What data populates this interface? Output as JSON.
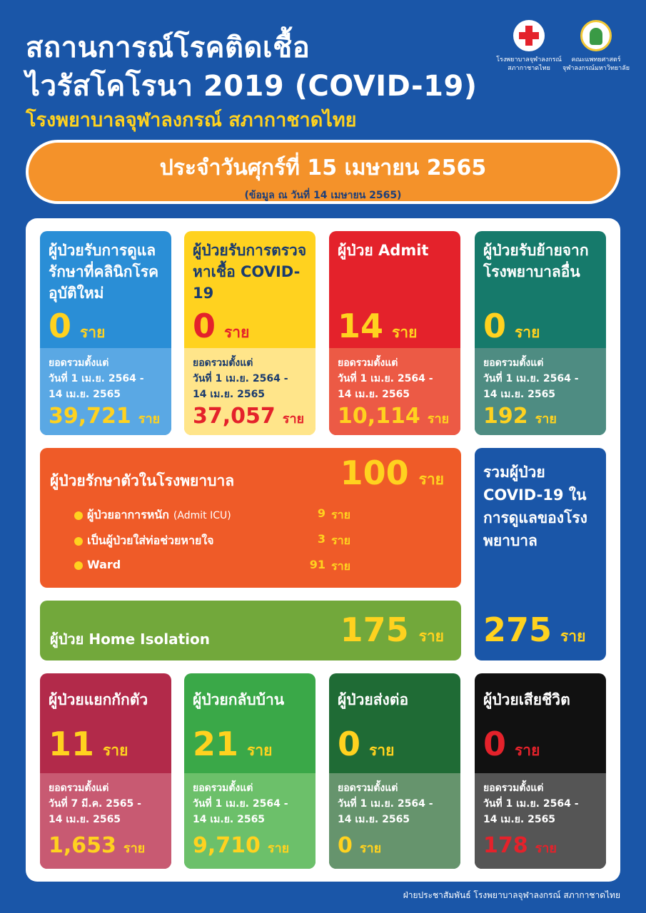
{
  "header": {
    "title_line1": "สถานการณ์โรคติดเชื้อ",
    "title_line2": "ไวรัสโคโรนา 2019 (COVID-19)",
    "subtitle": "โรงพยาบาลจุฬาลงกรณ์ สภากาชาดไทย",
    "logos": [
      {
        "icon": "red-cross-icon",
        "caption_line1": "โรงพยาบาลจุฬาลงกรณ์",
        "caption_line2": "สภากาชาดไทย"
      },
      {
        "icon": "faculty-seal-icon",
        "caption_line1": "คณะแพทยศาสตร์",
        "caption_line2": "จุฬาลงกรณ์มหาวิทยาลัย"
      }
    ]
  },
  "date": {
    "main": "ประจำวันศุกร์ที่ 15 เมษายน 2565",
    "sub": "(ข้อมูล ณ วันที่ 14 เมษายน 2565)"
  },
  "top_cards": [
    {
      "title": "ผู้ป่วยรับการดูแลรักษาที่คลินิกโรคอุบัติใหม่",
      "value": "0",
      "unit": "ราย",
      "range_line1": "ยอดรวมตั้งแต่",
      "range_line2": "วันที่ 1 เม.ย. 2564 -",
      "range_line3": "14 เม.ย. 2565",
      "cum_value": "39,721",
      "cum_unit": "ราย"
    },
    {
      "title": "ผู้ป่วยรับการตรวจหาเชื้อ COVID-19",
      "value": "0",
      "unit": "ราย",
      "range_line1": "ยอดรวมตั้งแต่",
      "range_line2": "วันที่ 1 เม.ย. 2564 -",
      "range_line3": "14 เม.ย. 2565",
      "cum_value": "37,057",
      "cum_unit": "ราย"
    },
    {
      "title": "ผู้ป่วย Admit",
      "value": "14",
      "unit": "ราย",
      "range_line1": "ยอดรวมตั้งแต่",
      "range_line2": "วันที่ 1 เม.ย. 2564 -",
      "range_line3": "14 เม.ย. 2565",
      "cum_value": "10,114",
      "cum_unit": "ราย"
    },
    {
      "title": "ผู้ป่วยรับย้ายจากโรงพยาบาลอื่น",
      "value": "0",
      "unit": "ราย",
      "range_line1": "ยอดรวมตั้งแต่",
      "range_line2": "วันที่ 1 เม.ย. 2564 -",
      "range_line3": "14 เม.ย. 2565",
      "cum_value": "192",
      "cum_unit": "ราย"
    }
  ],
  "hospital": {
    "title": "ผู้ป่วยรักษาตัวในโรงพยาบาล",
    "value": "100",
    "unit": "ราย",
    "items": [
      {
        "label": "ผู้ป่วยอาการหนัก",
        "note": "(Admit ICU)",
        "value": "9",
        "unit": "ราย"
      },
      {
        "label": "เป็นผู้ป่วยใส่ท่อช่วยหายใจ",
        "note": "",
        "value": "3",
        "unit": "ราย"
      },
      {
        "label": "Ward",
        "note": "",
        "value": "91",
        "unit": "ราย"
      }
    ]
  },
  "home_isolation": {
    "title": "ผู้ป่วย Home Isolation",
    "value": "175",
    "unit": "ราย"
  },
  "total": {
    "title": "รวมผู้ป่วย COVID-19 ในการดูแลของโรงพยาบาล",
    "value": "275",
    "unit": "ราย"
  },
  "bottom_cards": [
    {
      "title": "ผู้ป่วยแยกกักตัว",
      "value": "11",
      "unit": "ราย",
      "range_line1": "ยอดรวมตั้งแต่",
      "range_line2": "วันที่ 7 มี.ค. 2565 -",
      "range_line3": "14 เม.ย. 2565",
      "cum_value": "1,653",
      "cum_unit": "ราย"
    },
    {
      "title": "ผู้ป่วยกลับบ้าน",
      "value": "21",
      "unit": "ราย",
      "range_line1": "ยอดรวมตั้งแต่",
      "range_line2": "วันที่ 1 เม.ย. 2564 -",
      "range_line3": "14 เม.ย. 2565",
      "cum_value": "9,710",
      "cum_unit": "ราย"
    },
    {
      "title": "ผู้ป่วยส่งต่อ",
      "value": "0",
      "unit": "ราย",
      "range_line1": "ยอดรวมตั้งแต่",
      "range_line2": "วันที่ 1 เม.ย. 2564 -",
      "range_line3": "14 เม.ย. 2565",
      "cum_value": "0",
      "cum_unit": "ราย"
    },
    {
      "title": "ผู้ป่วยเสียชีวิต",
      "value": "0",
      "unit": "ราย",
      "range_line1": "ยอดรวมตั้งแต่",
      "range_line2": "วันที่ 1 เม.ย. 2564 -",
      "range_line3": "14 เม.ย. 2565",
      "cum_value": "178",
      "cum_unit": "ราย"
    }
  ],
  "footer": "ฝ่ายประชาสัมพันธ์ โรงพยาบาลจุฬาลงกรณ์ สภากาชาดไทย",
  "colors": {
    "background": "#1a56a8",
    "accent_yellow": "#ffd21f",
    "date_orange": "#f4922a",
    "card_blue": "#2a8ed6",
    "card_yellow": "#ffd21f",
    "card_red": "#e4222b",
    "card_teal": "#167a6b",
    "hospital_orange": "#ef5b28",
    "home_green": "#72a83b",
    "total_blue": "#1a56a8",
    "card_maroon": "#b22a4a",
    "card_green": "#3aa848",
    "card_darkgreen": "#1f6b35",
    "card_black": "#111111"
  }
}
